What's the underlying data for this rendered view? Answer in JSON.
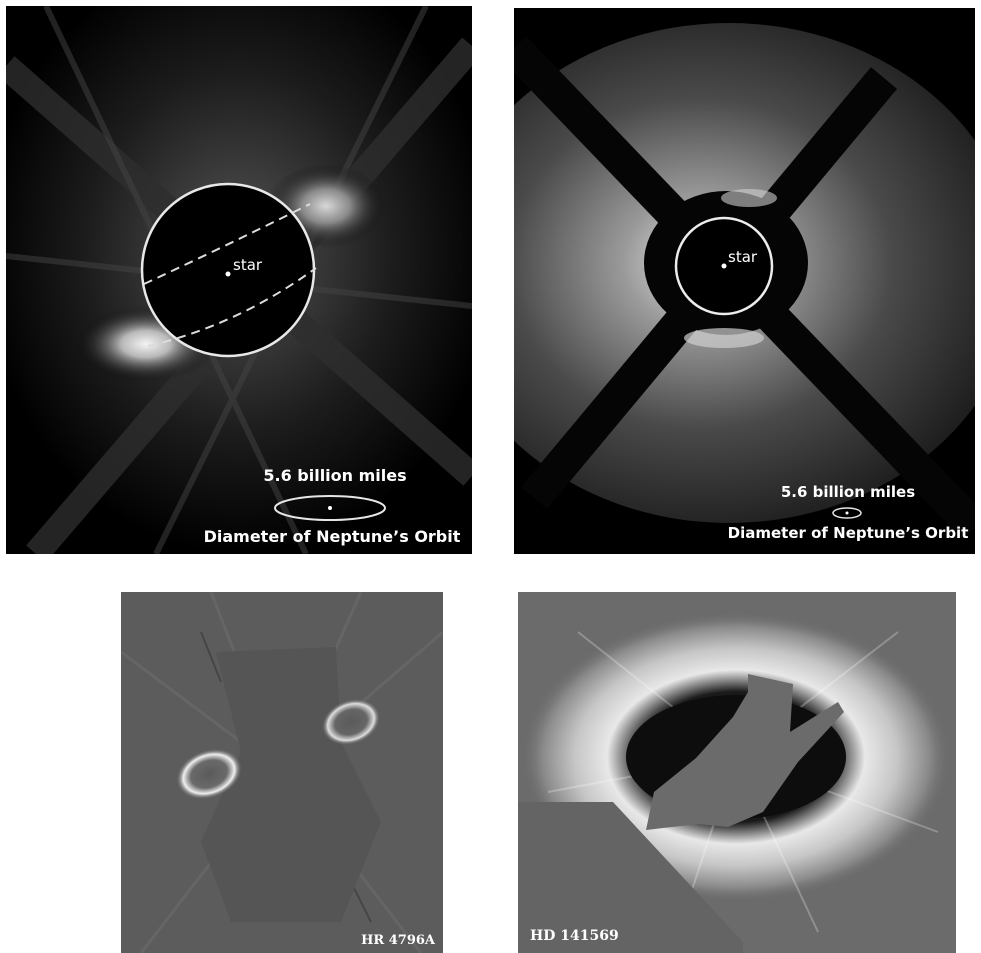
{
  "panels": {
    "top_left": {
      "star_label": "star",
      "scale_text": "5.6 billion miles",
      "scale_caption": "Diameter of Neptune’s Orbit"
    },
    "top_right": {
      "star_label": "star",
      "scale_text": "5.6 billion miles",
      "scale_caption": "Diameter of Neptune’s Orbit"
    },
    "bottom_left": {
      "target_name": "HR 4796A"
    },
    "bottom_right": {
      "target_name": "HD 141569"
    }
  }
}
